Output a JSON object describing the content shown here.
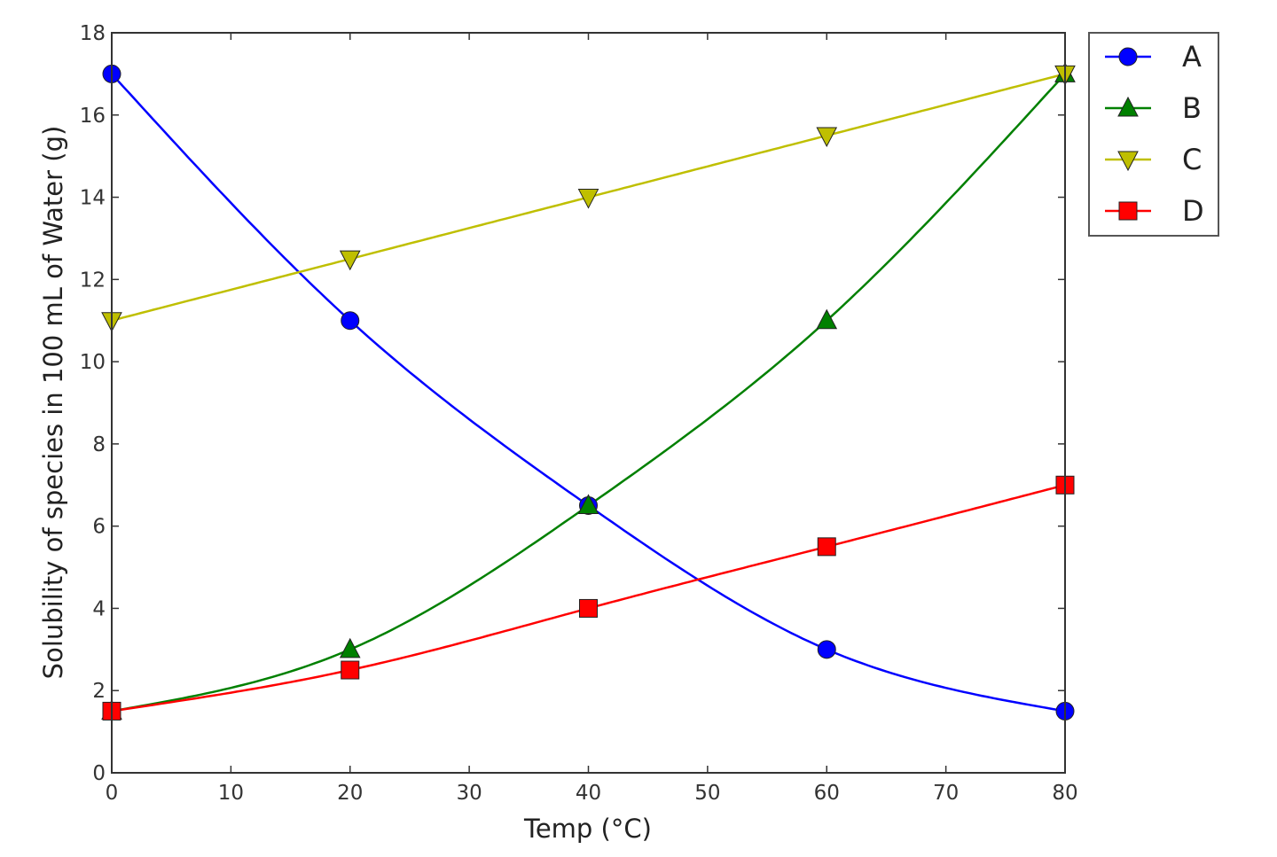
{
  "chart_data": {
    "type": "line",
    "title": "",
    "xlabel": "Temp (°C)",
    "ylabel": "Solubility of species in 100 mL of Water (g)",
    "xlim": [
      0,
      80
    ],
    "ylim": [
      0,
      18
    ],
    "xticks": [
      0,
      10,
      20,
      30,
      40,
      50,
      60,
      70,
      80
    ],
    "yticks": [
      0,
      2,
      4,
      6,
      8,
      10,
      12,
      14,
      16,
      18
    ],
    "grid": false,
    "legend_placement": "outside-top-right",
    "x": [
      0,
      20,
      40,
      60,
      80
    ],
    "series": [
      {
        "name": "A",
        "values": [
          17,
          11,
          6.5,
          3,
          1.5
        ],
        "color": "#0000ff",
        "marker": "circle",
        "smooth": true
      },
      {
        "name": "B",
        "values": [
          1.5,
          3,
          6.5,
          11,
          17
        ],
        "color": "#008000",
        "marker": "triangle-up",
        "smooth": true
      },
      {
        "name": "C",
        "values": [
          11,
          12.5,
          14,
          15.5,
          17
        ],
        "color": "#bfbf00",
        "marker": "triangle-down",
        "smooth": true
      },
      {
        "name": "D",
        "values": [
          1.5,
          2.5,
          4,
          5.5,
          7
        ],
        "color": "#ff0000",
        "marker": "square",
        "smooth": true
      }
    ]
  }
}
